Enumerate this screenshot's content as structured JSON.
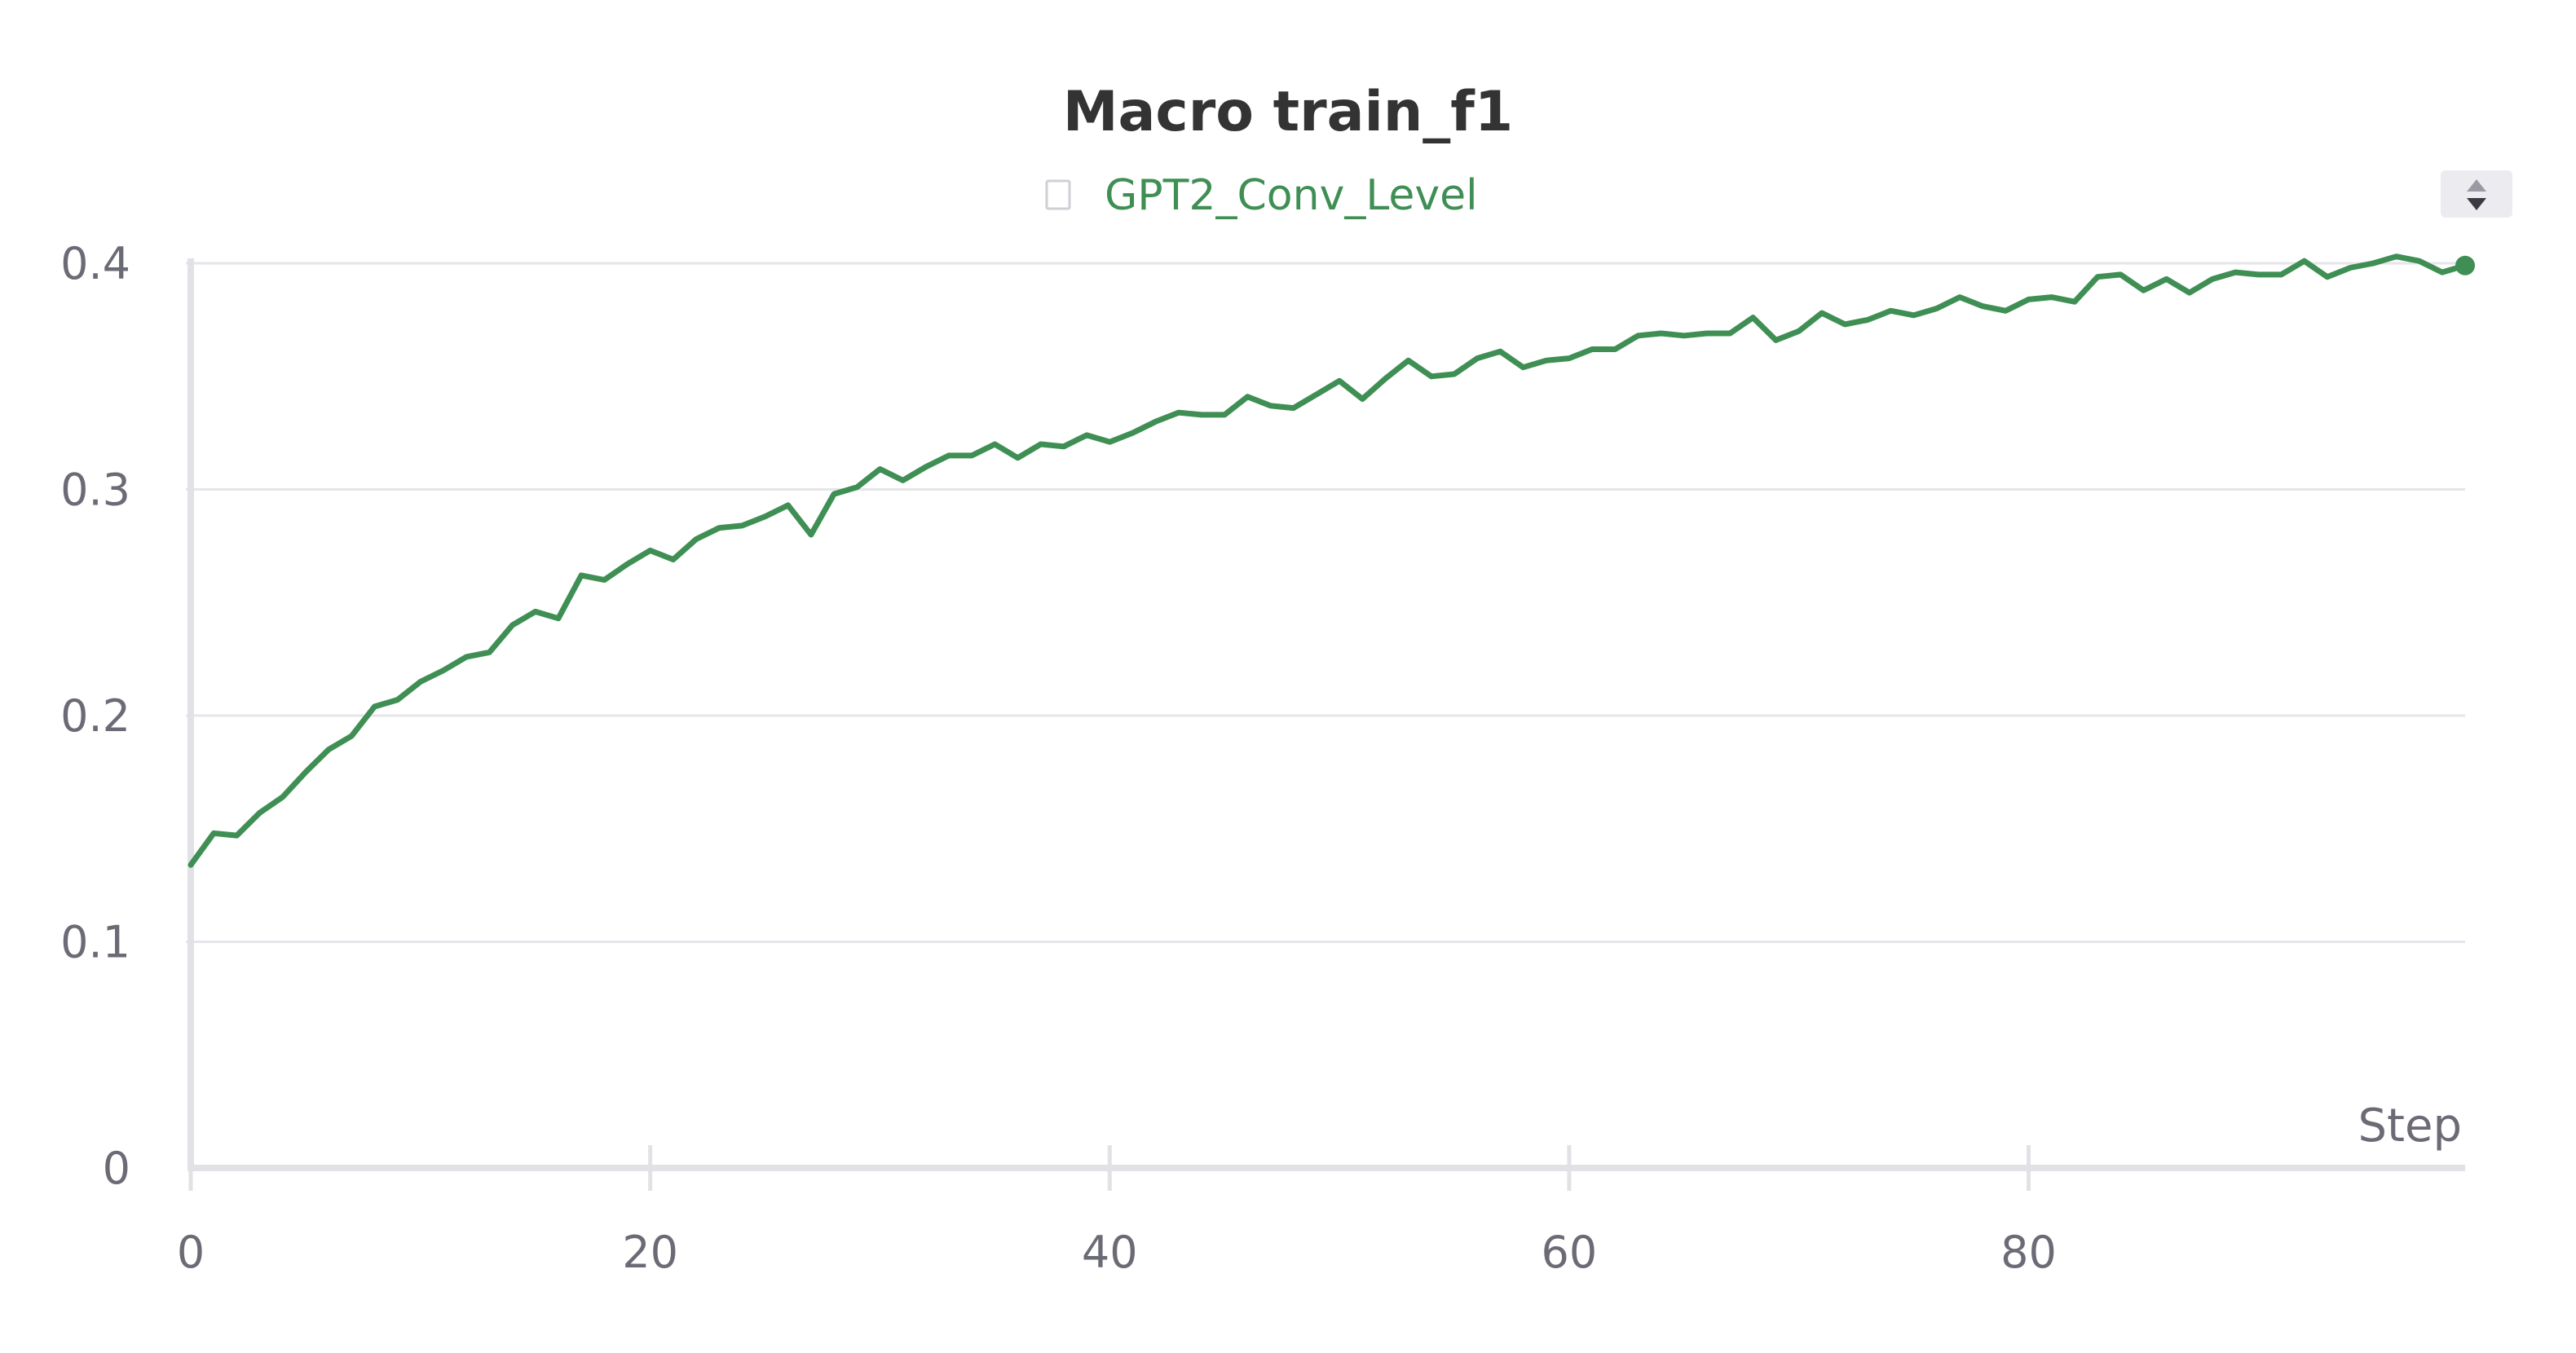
{
  "chart_data": {
    "type": "line",
    "title": "Macro train_f1",
    "xlabel": "Step",
    "ylabel": "",
    "xlim": [
      0,
      99
    ],
    "ylim": [
      0,
      0.4
    ],
    "x_ticks": [
      "0",
      "20",
      "40",
      "60",
      "80"
    ],
    "y_ticks": [
      "0",
      "0.1",
      "0.2",
      "0.3",
      "0.4"
    ],
    "grid": true,
    "legend_position": "top-center",
    "series": [
      {
        "name": "GPT2_Conv_Level",
        "color": "#3f8f55",
        "x": [
          0,
          1,
          2,
          3,
          4,
          5,
          6,
          7,
          8,
          9,
          10,
          11,
          12,
          13,
          14,
          15,
          16,
          17,
          18,
          19,
          20,
          21,
          22,
          23,
          24,
          25,
          26,
          27,
          28,
          29,
          30,
          31,
          32,
          33,
          34,
          35,
          36,
          37,
          38,
          39,
          40,
          41,
          42,
          43,
          44,
          45,
          46,
          47,
          48,
          49,
          50,
          51,
          52,
          53,
          54,
          55,
          56,
          57,
          58,
          59,
          60,
          61,
          62,
          63,
          64,
          65,
          66,
          67,
          68,
          69,
          70,
          71,
          72,
          73,
          74,
          75,
          76,
          77,
          78,
          79,
          80,
          81,
          82,
          83,
          84,
          85,
          86,
          87,
          88,
          89,
          90,
          91,
          92,
          93,
          94,
          95,
          96,
          97,
          98,
          99
        ],
        "values": [
          0.134,
          0.148,
          0.147,
          0.157,
          0.164,
          0.175,
          0.185,
          0.191,
          0.204,
          0.207,
          0.215,
          0.22,
          0.226,
          0.228,
          0.24,
          0.246,
          0.243,
          0.262,
          0.26,
          0.267,
          0.273,
          0.269,
          0.278,
          0.283,
          0.284,
          0.288,
          0.293,
          0.28,
          0.298,
          0.301,
          0.309,
          0.304,
          0.31,
          0.315,
          0.315,
          0.32,
          0.314,
          0.32,
          0.319,
          0.324,
          0.321,
          0.325,
          0.33,
          0.334,
          0.333,
          0.333,
          0.341,
          0.337,
          0.336,
          0.342,
          0.348,
          0.34,
          0.349,
          0.357,
          0.35,
          0.351,
          0.358,
          0.361,
          0.354,
          0.357,
          0.358,
          0.362,
          0.362,
          0.368,
          0.369,
          0.368,
          0.369,
          0.369,
          0.376,
          0.366,
          0.37,
          0.378,
          0.373,
          0.375,
          0.379,
          0.377,
          0.38,
          0.385,
          0.381,
          0.379,
          0.384,
          0.385,
          0.383,
          0.394,
          0.395,
          0.388,
          0.393,
          0.387,
          0.393,
          0.396,
          0.395,
          0.395,
          0.401,
          0.394,
          0.398,
          0.4,
          0.403,
          0.401,
          0.396,
          0.399
        ]
      }
    ]
  },
  "controls": {
    "scroll_icon": "up-down-arrows-icon"
  }
}
